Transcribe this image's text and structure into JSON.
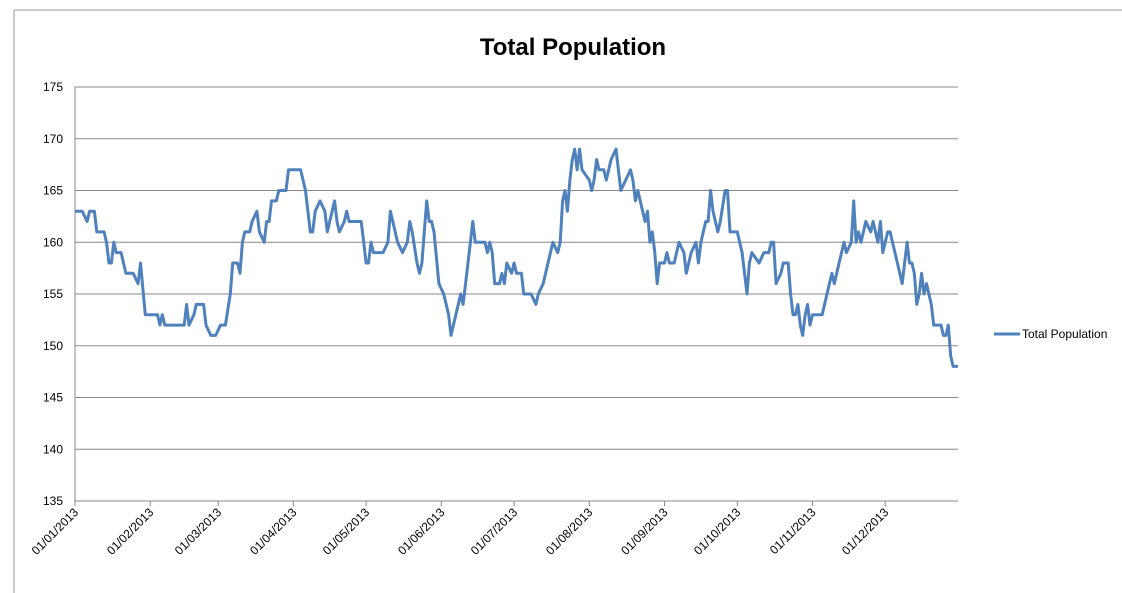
{
  "chart_data": {
    "type": "line",
    "title": "Total Population",
    "x": [
      "01/01/2013",
      "04/01/2013",
      "06/01/2013",
      "07/01/2013",
      "09/01/2013",
      "10/01/2013",
      "13/01/2013",
      "14/01/2013",
      "15/01/2013",
      "16/01/2013",
      "17/01/2013",
      "18/01/2013",
      "20/01/2013",
      "22/01/2013",
      "25/01/2013",
      "27/01/2013",
      "28/01/2013",
      "30/01/2013",
      "02/02/2013",
      "04/02/2013",
      "05/02/2013",
      "06/02/2013",
      "07/02/2013",
      "10/02/2013",
      "13/02/2013",
      "15/02/2013",
      "16/02/2013",
      "17/02/2013",
      "19/02/2013",
      "20/02/2013",
      "23/02/2013",
      "24/02/2013",
      "26/02/2013",
      "28/02/2013",
      "02/03/2013",
      "04/03/2013",
      "06/03/2013",
      "07/03/2013",
      "09/03/2013",
      "10/03/2013",
      "11/03/2013",
      "12/03/2013",
      "14/03/2013",
      "15/03/2013",
      "17/03/2013",
      "18/03/2013",
      "20/03/2013",
      "21/03/2013",
      "22/03/2013",
      "23/03/2013",
      "25/03/2013",
      "26/03/2013",
      "29/03/2013",
      "30/03/2013",
      "04/04/2013",
      "06/04/2013",
      "08/04/2013",
      "09/04/2013",
      "10/04/2013",
      "12/04/2013",
      "14/04/2013",
      "15/04/2013",
      "16/04/2013",
      "18/04/2013",
      "19/04/2013",
      "20/04/2013",
      "22/04/2013",
      "23/04/2013",
      "24/04/2013",
      "29/04/2013",
      "30/04/2013",
      "01/05/2013",
      "02/05/2013",
      "03/05/2013",
      "04/05/2013",
      "08/05/2013",
      "10/05/2013",
      "11/05/2013",
      "12/05/2013",
      "14/05/2013",
      "16/05/2013",
      "18/05/2013",
      "19/05/2013",
      "20/05/2013",
      "22/05/2013",
      "23/05/2013",
      "24/05/2013",
      "26/05/2013",
      "27/05/2013",
      "28/05/2013",
      "29/05/2013",
      "31/05/2013",
      "02/06/2013",
      "03/06/2013",
      "04/06/2013",
      "05/06/2013",
      "06/06/2013",
      "08/06/2013",
      "09/06/2013",
      "10/06/2013",
      "12/06/2013",
      "13/06/2013",
      "14/06/2013",
      "15/06/2013",
      "17/06/2013",
      "19/06/2013",
      "20/06/2013",
      "21/06/2013",
      "22/06/2013",
      "23/06/2013",
      "25/06/2013",
      "26/06/2013",
      "27/06/2013",
      "28/06/2013",
      "30/06/2013",
      "01/07/2013",
      "02/07/2013",
      "04/07/2013",
      "05/07/2013",
      "08/07/2013",
      "10/07/2013",
      "11/07/2013",
      "13/07/2013",
      "15/07/2013",
      "17/07/2013",
      "19/07/2013",
      "20/07/2013",
      "21/07/2013",
      "22/07/2013",
      "23/07/2013",
      "24/07/2013",
      "25/07/2013",
      "26/07/2013",
      "27/07/2013",
      "28/07/2013",
      "29/07/2013",
      "01/08/2013",
      "02/08/2013",
      "03/08/2013",
      "04/08/2013",
      "05/08/2013",
      "07/08/2013",
      "08/08/2013",
      "09/08/2013",
      "10/08/2013",
      "12/08/2013",
      "13/08/2013",
      "14/08/2013",
      "16/08/2013",
      "18/08/2013",
      "19/08/2013",
      "20/08/2013",
      "21/08/2013",
      "23/08/2013",
      "24/08/2013",
      "25/08/2013",
      "26/08/2013",
      "27/08/2013",
      "28/08/2013",
      "29/08/2013",
      "30/08/2013",
      "01/09/2013",
      "02/09/2013",
      "03/09/2013",
      "05/09/2013",
      "06/09/2013",
      "07/09/2013",
      "09/09/2013",
      "10/09/2013",
      "12/09/2013",
      "14/09/2013",
      "15/09/2013",
      "16/09/2013",
      "18/09/2013",
      "19/09/2013",
      "20/09/2013",
      "21/09/2013",
      "22/09/2013",
      "23/09/2013",
      "24/09/2013",
      "26/09/2013",
      "27/09/2013",
      "28/09/2013",
      "01/10/2013",
      "03/10/2013",
      "05/10/2013",
      "06/10/2013",
      "07/10/2013",
      "10/10/2013",
      "12/10/2013",
      "14/10/2013",
      "15/10/2013",
      "16/10/2013",
      "17/10/2013",
      "19/10/2013",
      "20/10/2013",
      "22/10/2013",
      "23/10/2013",
      "24/10/2013",
      "25/10/2013",
      "26/10/2013",
      "27/10/2013",
      "28/10/2013",
      "29/10/2013",
      "30/10/2013",
      "31/10/2013",
      "01/11/2013",
      "05/11/2013",
      "07/11/2013",
      "09/11/2013",
      "10/11/2013",
      "12/11/2013",
      "14/11/2013",
      "15/11/2013",
      "17/11/2013",
      "18/11/2013",
      "19/11/2013",
      "20/11/2013",
      "21/11/2013",
      "23/11/2013",
      "25/11/2013",
      "26/11/2013",
      "28/11/2013",
      "29/11/2013",
      "30/11/2013",
      "01/12/2013",
      "02/12/2013",
      "03/12/2013",
      "04/12/2013",
      "06/12/2013",
      "07/12/2013",
      "08/12/2013",
      "09/12/2013",
      "10/12/2013",
      "11/12/2013",
      "12/12/2013",
      "13/12/2013",
      "14/12/2013",
      "15/12/2013",
      "16/12/2013",
      "17/12/2013",
      "18/12/2013",
      "19/12/2013",
      "20/12/2013",
      "21/12/2013",
      "24/12/2013",
      "25/12/2013",
      "26/12/2013",
      "27/12/2013",
      "28/12/2013",
      "29/12/2013",
      "31/12/2013"
    ],
    "series": [
      {
        "name": "Total Population",
        "color": "#4f81bd",
        "values": [
          163,
          163,
          162,
          163,
          163,
          161,
          161,
          160,
          158,
          158,
          160,
          159,
          159,
          157,
          157,
          156,
          158,
          153,
          153,
          153,
          152,
          153,
          152,
          152,
          152,
          152,
          154,
          152,
          153,
          154,
          154,
          152,
          151,
          151,
          152,
          152,
          155,
          158,
          158,
          157,
          160,
          161,
          161,
          162,
          163,
          161,
          160,
          162,
          162,
          164,
          164,
          165,
          165,
          167,
          167,
          165,
          161,
          161,
          163,
          164,
          163,
          161,
          162,
          164,
          162,
          161,
          162,
          163,
          162,
          162,
          160,
          158,
          158,
          160,
          159,
          159,
          160,
          163,
          162,
          160,
          159,
          160,
          162,
          161,
          158,
          157,
          158,
          164,
          162,
          162,
          161,
          156,
          155,
          154,
          153,
          151,
          152,
          154,
          155,
          154,
          158,
          160,
          162,
          160,
          160,
          160,
          159,
          160,
          159,
          156,
          156,
          157,
          156,
          158,
          157,
          158,
          157,
          157,
          155,
          155,
          154,
          155,
          156,
          158,
          160,
          159,
          160,
          164,
          165,
          163,
          166,
          168,
          169,
          167,
          169,
          167,
          166,
          165,
          166,
          168,
          167,
          167,
          166,
          167,
          168,
          169,
          167,
          165,
          166,
          167,
          166,
          164,
          165,
          163,
          162,
          163,
          160,
          161,
          159,
          156,
          158,
          158,
          159,
          158,
          158,
          159,
          160,
          159,
          157,
          159,
          160,
          158,
          160,
          162,
          162,
          165,
          163,
          162,
          161,
          162,
          165,
          165,
          161,
          161,
          159,
          155,
          158,
          159,
          158,
          159,
          159,
          160,
          160,
          156,
          157,
          158,
          158,
          155,
          153,
          153,
          154,
          152,
          151,
          153,
          154,
          152,
          153,
          153,
          155,
          157,
          156,
          158,
          160,
          159,
          160,
          164,
          160,
          161,
          160,
          162,
          161,
          162,
          160,
          162,
          159,
          160,
          161,
          161,
          160,
          158,
          157,
          156,
          158,
          160,
          158,
          158,
          157,
          154,
          155,
          157,
          155,
          156,
          155,
          154,
          152,
          152,
          151,
          151,
          152,
          149,
          148,
          148
        ]
      }
    ],
    "xlim": [
      "01/01/2013",
      "31/12/2013"
    ],
    "xticks": [
      "01/01/2013",
      "01/02/2013",
      "01/03/2013",
      "01/04/2013",
      "01/05/2013",
      "01/06/2013",
      "01/07/2013",
      "01/08/2013",
      "01/09/2013",
      "01/10/2013",
      "01/11/2013",
      "01/12/2013"
    ],
    "ylim": [
      135,
      175
    ],
    "yticks": [
      135,
      140,
      145,
      150,
      155,
      160,
      165,
      170,
      175
    ],
    "grid": true,
    "legend": "right"
  }
}
